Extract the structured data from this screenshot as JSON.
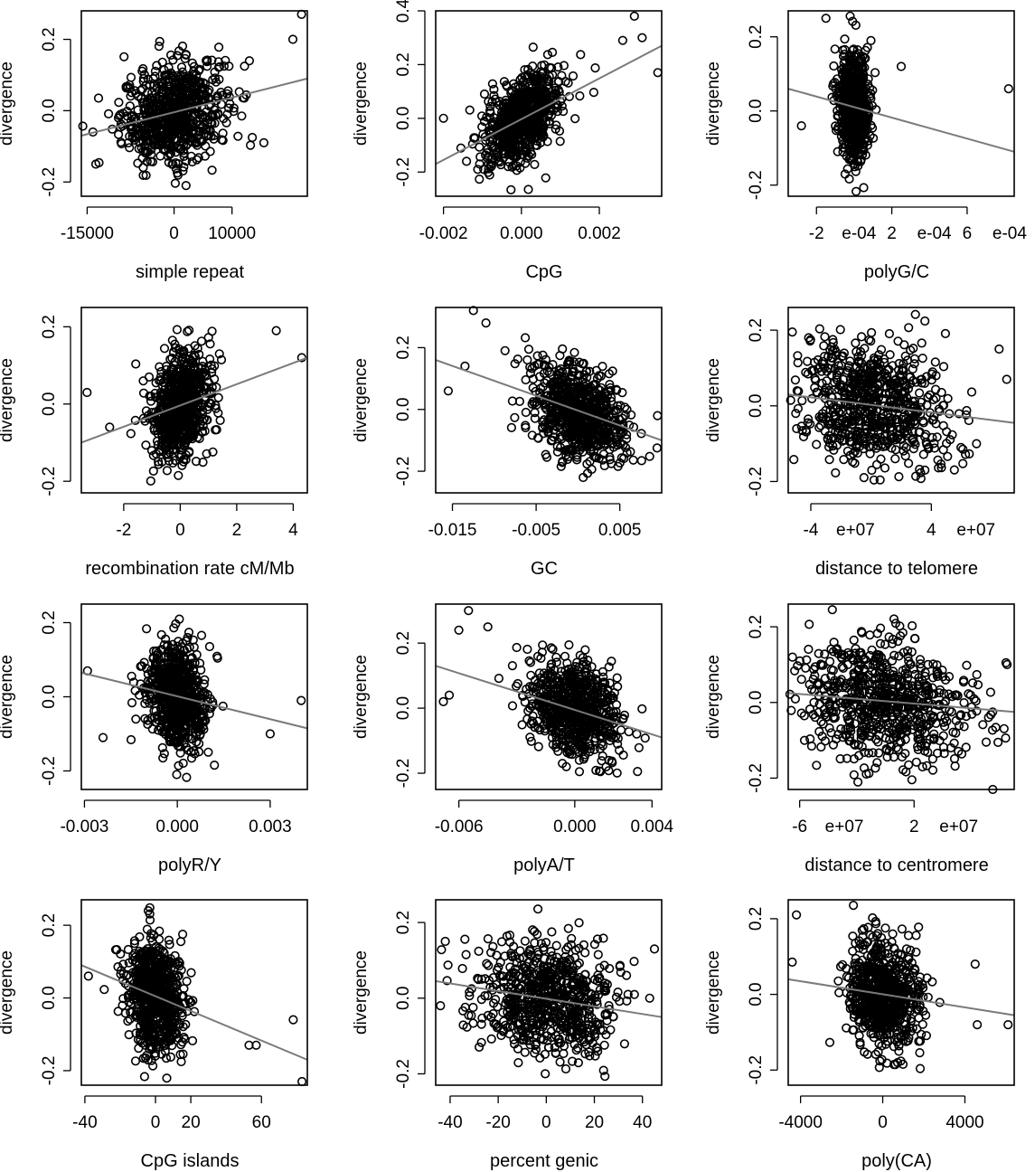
{
  "chart_data": [
    {
      "type": "scatter",
      "xlabel": "simple repeat",
      "ylabel": "divergence",
      "xlim": [
        -16000,
        23000
      ],
      "ylim": [
        -0.24,
        0.28
      ],
      "xticks": [
        "-15000",
        "0",
        "10000"
      ],
      "xtick_values": [
        -15000,
        0,
        10000
      ],
      "yticks": [
        "-0.2",
        "0.0",
        "0.2"
      ],
      "ytick_values": [
        -0.2,
        0,
        0.2
      ],
      "x_spread": 4500,
      "y_spread": 0.07,
      "fit": {
        "x": [
          -16000,
          23000
        ],
        "y": [
          -0.07,
          0.09
        ]
      },
      "outliers": [
        [
          22000,
          0.27
        ],
        [
          20500,
          0.2
        ],
        [
          -14000,
          -0.06
        ],
        [
          -13500,
          -0.15
        ],
        [
          15500,
          -0.09
        ],
        [
          13000,
          0.14
        ]
      ]
    },
    {
      "type": "scatter",
      "xlabel": "CpG",
      "ylabel": "divergence",
      "xlim": [
        -0.0022,
        0.0036
      ],
      "ylim": [
        -0.29,
        0.4
      ],
      "xticks": [
        "-0.002",
        "0.000",
        "0.002"
      ],
      "xtick_values": [
        -0.002,
        0,
        0.002
      ],
      "yticks": [
        "-0.2",
        "0.0",
        "0.2",
        "0.4"
      ],
      "ytick_values": [
        -0.2,
        0,
        0.2,
        0.4
      ],
      "x_spread": 0.0005,
      "y_spread": 0.075,
      "fit": {
        "x": [
          -0.0022,
          0.0036
        ],
        "y": [
          -0.17,
          0.27
        ]
      },
      "outliers": [
        [
          0.0035,
          0.17
        ],
        [
          0.0031,
          0.3
        ],
        [
          0.0029,
          0.38
        ],
        [
          -0.002,
          0.0
        ],
        [
          0.0026,
          0.29
        ]
      ]
    },
    {
      "type": "scatter",
      "xlabel": "polyG/C",
      "ylabel": "divergence",
      "xlim": [
        -0.00035,
        0.00085
      ],
      "ylim": [
        -0.23,
        0.27
      ],
      "xticks": [
        "-2",
        "2",
        "6"
      ],
      "xtick_values": [
        -0.0002,
        0.0002,
        0.0006
      ],
      "xtick_suffix": "e-04",
      "yticks": [
        "-0.2",
        "0.0",
        "0.2"
      ],
      "ytick_values": [
        -0.2,
        0,
        0.2
      ],
      "x_spread": 4e-05,
      "y_spread": 0.07,
      "fit": {
        "x": [
          -0.00035,
          0.00085
        ],
        "y": [
          0.06,
          -0.11
        ]
      },
      "outliers": [
        [
          0.00082,
          0.06
        ],
        [
          -0.00028,
          -0.04
        ],
        [
          -0.00015,
          0.25
        ],
        [
          0.00025,
          0.12
        ]
      ]
    },
    {
      "type": "scatter",
      "xlabel": "recombination rate cM/Mb",
      "ylabel": "divergence",
      "xlim": [
        -3.5,
        4.5
      ],
      "ylim": [
        -0.23,
        0.25
      ],
      "xticks": [
        "-2",
        "0",
        "2",
        "4"
      ],
      "xtick_values": [
        -2,
        0,
        2,
        4
      ],
      "yticks": [
        "-0.2",
        "0.0",
        "0.2"
      ],
      "ytick_values": [
        -0.2,
        0,
        0.2
      ],
      "x_spread": 0.55,
      "y_spread": 0.07,
      "fit": {
        "x": [
          -3.5,
          4.5
        ],
        "y": [
          -0.1,
          0.12
        ]
      },
      "outliers": [
        [
          -3.3,
          0.03
        ],
        [
          4.3,
          0.12
        ],
        [
          3.4,
          0.19
        ],
        [
          -2.5,
          -0.06
        ]
      ]
    },
    {
      "type": "scatter",
      "xlabel": "GC",
      "ylabel": "divergence",
      "xlim": [
        -0.017,
        0.01
      ],
      "ylim": [
        -0.27,
        0.33
      ],
      "xticks": [
        "-0.015",
        "-0.005",
        "0.005"
      ],
      "xtick_values": [
        -0.015,
        -0.005,
        0.005
      ],
      "yticks": [
        "-0.2",
        "0.0",
        "0.2"
      ],
      "ytick_values": [
        -0.2,
        0,
        0.2
      ],
      "x_spread": 0.0028,
      "y_spread": 0.075,
      "fit": {
        "x": [
          -0.017,
          0.01
        ],
        "y": [
          0.16,
          -0.1
        ]
      },
      "outliers": [
        [
          -0.0155,
          0.06
        ],
        [
          -0.0135,
          0.14
        ],
        [
          -0.0125,
          0.32
        ],
        [
          -0.011,
          0.28
        ],
        [
          0.0095,
          -0.02
        ]
      ]
    },
    {
      "type": "scatter",
      "xlabel": "distance to telomere",
      "ylabel": "divergence",
      "xlim": [
        -55000000.0,
        95000000.0
      ],
      "ylim": [
        -0.23,
        0.26
      ],
      "xticks": [
        "-4",
        "4"
      ],
      "xtick_values": [
        -40000000.0,
        40000000.0
      ],
      "xtick_suffix": "e+07",
      "yticks": [
        "-0.2",
        "0.0",
        "0.2"
      ],
      "ytick_values": [
        -0.2,
        0,
        0.2
      ],
      "x_spread": 26000000.0,
      "y_spread": 0.08,
      "fit": {
        "x": [
          -55000000.0,
          95000000.0
        ],
        "y": [
          0.03,
          -0.045
        ]
      },
      "outliers": [
        [
          90000000.0,
          0.07
        ],
        [
          85000000.0,
          0.15
        ],
        [
          -50000000.0,
          -0.02
        ],
        [
          70000000.0,
          -0.1
        ]
      ]
    },
    {
      "type": "scatter",
      "xlabel": "polyR/Y",
      "ylabel": "divergence",
      "xlim": [
        -0.0031,
        0.0042
      ],
      "ylim": [
        -0.25,
        0.25
      ],
      "xticks": [
        "-0.003",
        "0.000",
        "0.003"
      ],
      "xtick_values": [
        -0.003,
        0,
        0.003
      ],
      "yticks": [
        "-0.2",
        "0.0",
        "0.2"
      ],
      "ytick_values": [
        -0.2,
        0,
        0.2
      ],
      "x_spread": 0.0005,
      "y_spread": 0.07,
      "fit": {
        "x": [
          -0.0031,
          0.0042
        ],
        "y": [
          0.065,
          -0.085
        ]
      },
      "outliers": [
        [
          0.004,
          -0.01
        ],
        [
          -0.0029,
          0.07
        ],
        [
          0.003,
          -0.1
        ],
        [
          -0.0024,
          -0.11
        ]
      ]
    },
    {
      "type": "scatter",
      "xlabel": "polyA/T",
      "ylabel": "divergence",
      "xlim": [
        -0.0072,
        0.0045
      ],
      "ylim": [
        -0.25,
        0.32
      ],
      "xticks": [
        "-0.006",
        "0.000",
        "0.004"
      ],
      "xtick_values": [
        -0.006,
        0,
        0.004
      ],
      "yticks": [
        "-0.2",
        "0.0",
        "0.2"
      ],
      "ytick_values": [
        -0.2,
        0,
        0.2
      ],
      "x_spread": 0.0012,
      "y_spread": 0.075,
      "fit": {
        "x": [
          -0.0072,
          0.0045
        ],
        "y": [
          0.13,
          -0.09
        ]
      },
      "outliers": [
        [
          -0.0068,
          0.02
        ],
        [
          -0.0065,
          0.04
        ],
        [
          -0.0055,
          0.3
        ],
        [
          -0.006,
          0.24
        ],
        [
          -0.0045,
          0.25
        ]
      ]
    },
    {
      "type": "scatter",
      "xlabel": "distance to centromere",
      "ylabel": "divergence",
      "xlim": [
        -68000000.0,
        90000000.0
      ],
      "ylim": [
        -0.23,
        0.26
      ],
      "xticks": [
        "-6",
        "2"
      ],
      "xtick_values": [
        -60000000.0,
        20000000.0
      ],
      "xtick_suffix": "e+07",
      "yticks": [
        "-0.2",
        "0.0",
        "0.2"
      ],
      "ytick_values": [
        -0.2,
        0,
        0.2
      ],
      "x_spread": 30000000.0,
      "y_spread": 0.08,
      "fit": {
        "x": [
          -68000000.0,
          90000000.0
        ],
        "y": [
          0.025,
          -0.025
        ]
      },
      "outliers": [
        [
          85000000.0,
          0.1
        ],
        [
          -65000000.0,
          0.12
        ],
        [
          75000000.0,
          -0.23
        ]
      ]
    },
    {
      "type": "scatter",
      "xlabel": "CpG islands",
      "ylabel": "divergence",
      "xlim": [
        -42,
        86
      ],
      "ylim": [
        -0.24,
        0.27
      ],
      "xticks": [
        "-40",
        "0",
        "20",
        "60"
      ],
      "xtick_values": [
        -40,
        0,
        20,
        60
      ],
      "yticks": [
        "-0.2",
        "0.0",
        "0.2"
      ],
      "ytick_values": [
        -0.2,
        0,
        0.2
      ],
      "x_spread": 8,
      "y_spread": 0.075,
      "fit": {
        "x": [
          -42,
          86
        ],
        "y": [
          0.09,
          -0.17
        ]
      },
      "outliers": [
        [
          83,
          -0.23
        ],
        [
          78,
          -0.06
        ],
        [
          57,
          -0.13
        ],
        [
          53,
          -0.13
        ],
        [
          -38,
          0.06
        ]
      ]
    },
    {
      "type": "scatter",
      "xlabel": "percent genic",
      "ylabel": "divergence",
      "xlim": [
        -46,
        48
      ],
      "ylim": [
        -0.23,
        0.26
      ],
      "xticks": [
        "-40",
        "-20",
        "0",
        "20",
        "40"
      ],
      "xtick_values": [
        -40,
        -20,
        0,
        20,
        40
      ],
      "yticks": [
        "-0.2",
        "0.0",
        "0.2"
      ],
      "ytick_values": [
        -0.2,
        0,
        0.2
      ],
      "x_spread": 14,
      "y_spread": 0.08,
      "fit": {
        "x": [
          -46,
          48
        ],
        "y": [
          0.045,
          -0.05
        ]
      },
      "outliers": [
        [
          -44,
          -0.02
        ],
        [
          -42,
          0.15
        ],
        [
          45,
          0.13
        ],
        [
          43,
          0.0
        ]
      ]
    },
    {
      "type": "scatter",
      "xlabel": "poly(CA)",
      "ylabel": "divergence",
      "xlim": [
        -4600,
        6400
      ],
      "ylim": [
        -0.24,
        0.25
      ],
      "xticks": [
        "-4000",
        "0",
        "4000"
      ],
      "xtick_values": [
        -4000,
        0,
        4000
      ],
      "yticks": [
        "-0.2",
        "0.0",
        "0.2"
      ],
      "ytick_values": [
        -0.2,
        0,
        0.2
      ],
      "x_spread": 900,
      "y_spread": 0.075,
      "fit": {
        "x": [
          -4600,
          6400
        ],
        "y": [
          0.04,
          -0.055
        ]
      },
      "outliers": [
        [
          -4200,
          0.21
        ],
        [
          6100,
          -0.08
        ],
        [
          4500,
          0.08
        ],
        [
          4600,
          -0.08
        ]
      ]
    }
  ]
}
